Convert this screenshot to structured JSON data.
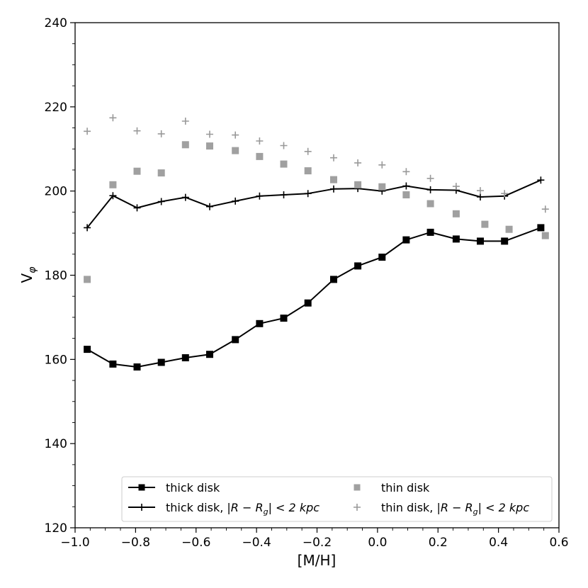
{
  "chart_data": {
    "type": "line",
    "xlabel": "[M/H]",
    "ylabel": "V",
    "ylabel_subscript": "φ",
    "xlim": [
      -1.0,
      0.6
    ],
    "ylim": [
      120,
      240
    ],
    "x_ticks": [
      -1.0,
      -0.8,
      -0.6,
      -0.4,
      -0.2,
      0.0,
      0.2,
      0.4,
      0.6
    ],
    "x_tick_labels": [
      "−1.0",
      "−0.8",
      "−0.6",
      "−0.4",
      "−0.2",
      "0.0",
      "0.2",
      "0.4",
      "0.6"
    ],
    "y_ticks": [
      120,
      140,
      160,
      180,
      200,
      220,
      240
    ],
    "y_tick_labels": [
      "120",
      "140",
      "160",
      "180",
      "200",
      "220",
      "240"
    ],
    "grid": false,
    "legend_position": "bottom",
    "legend": {
      "thick_disk": "thick disk",
      "thick_disk_local_prefix": "thick disk, ",
      "thin_disk": "thin disk",
      "thin_disk_local_prefix": "thin disk, ",
      "condition": "|R − R",
      "condition_sub": "g",
      "condition_suffix": "| < 2 kpc"
    },
    "series": [
      {
        "name": "thick disk",
        "style": "line-square",
        "color": "#000000",
        "x": [
          -0.96,
          -0.875,
          -0.795,
          -0.715,
          -0.635,
          -0.555,
          -0.47,
          -0.39,
          -0.31,
          -0.23,
          -0.145,
          -0.065,
          0.015,
          0.095,
          0.175,
          0.26,
          0.34,
          0.42,
          0.54
        ],
        "y": [
          162.4,
          158.9,
          158.2,
          159.3,
          160.4,
          161.2,
          164.7,
          168.5,
          169.8,
          173.4,
          179.0,
          182.2,
          184.3,
          188.4,
          190.2,
          188.6,
          188.1,
          188.1,
          191.3
        ]
      },
      {
        "name": "thick disk, |R − Rg| < 2 kpc",
        "style": "line-plus",
        "color": "#000000",
        "x": [
          -0.96,
          -0.875,
          -0.795,
          -0.715,
          -0.635,
          -0.555,
          -0.47,
          -0.39,
          -0.31,
          -0.23,
          -0.145,
          -0.065,
          0.015,
          0.095,
          0.175,
          0.26,
          0.34,
          0.42,
          0.54
        ],
        "y": [
          191.3,
          198.9,
          196.0,
          197.5,
          198.5,
          196.3,
          197.6,
          198.8,
          199.1,
          199.4,
          200.5,
          200.6,
          200.0,
          201.2,
          200.3,
          200.2,
          198.6,
          198.8,
          202.6
        ]
      },
      {
        "name": "thin disk",
        "style": "square",
        "color": "#a0a0a0",
        "x": [
          -0.96,
          -0.875,
          -0.795,
          -0.715,
          -0.635,
          -0.555,
          -0.47,
          -0.39,
          -0.31,
          -0.23,
          -0.145,
          -0.065,
          0.015,
          0.095,
          0.175,
          0.26,
          0.355,
          0.435,
          0.555
        ],
        "y": [
          179.0,
          201.5,
          204.7,
          204.3,
          211.0,
          210.7,
          209.6,
          208.2,
          206.4,
          204.8,
          202.7,
          201.5,
          201.0,
          199.1,
          197.0,
          194.6,
          192.1,
          190.9,
          189.4
        ]
      },
      {
        "name": "thin disk, |R − Rg| < 2 kpc",
        "style": "plus",
        "color": "#999999",
        "x": [
          -0.96,
          -0.875,
          -0.795,
          -0.715,
          -0.635,
          -0.555,
          -0.47,
          -0.39,
          -0.31,
          -0.23,
          -0.145,
          -0.065,
          0.015,
          0.095,
          0.175,
          0.26,
          0.34,
          0.42,
          0.555
        ],
        "y": [
          214.2,
          217.4,
          214.3,
          213.6,
          216.6,
          213.5,
          213.3,
          211.9,
          210.8,
          209.4,
          207.9,
          206.7,
          206.2,
          204.6,
          203.0,
          201.1,
          200.1,
          199.4,
          195.7
        ]
      }
    ]
  }
}
